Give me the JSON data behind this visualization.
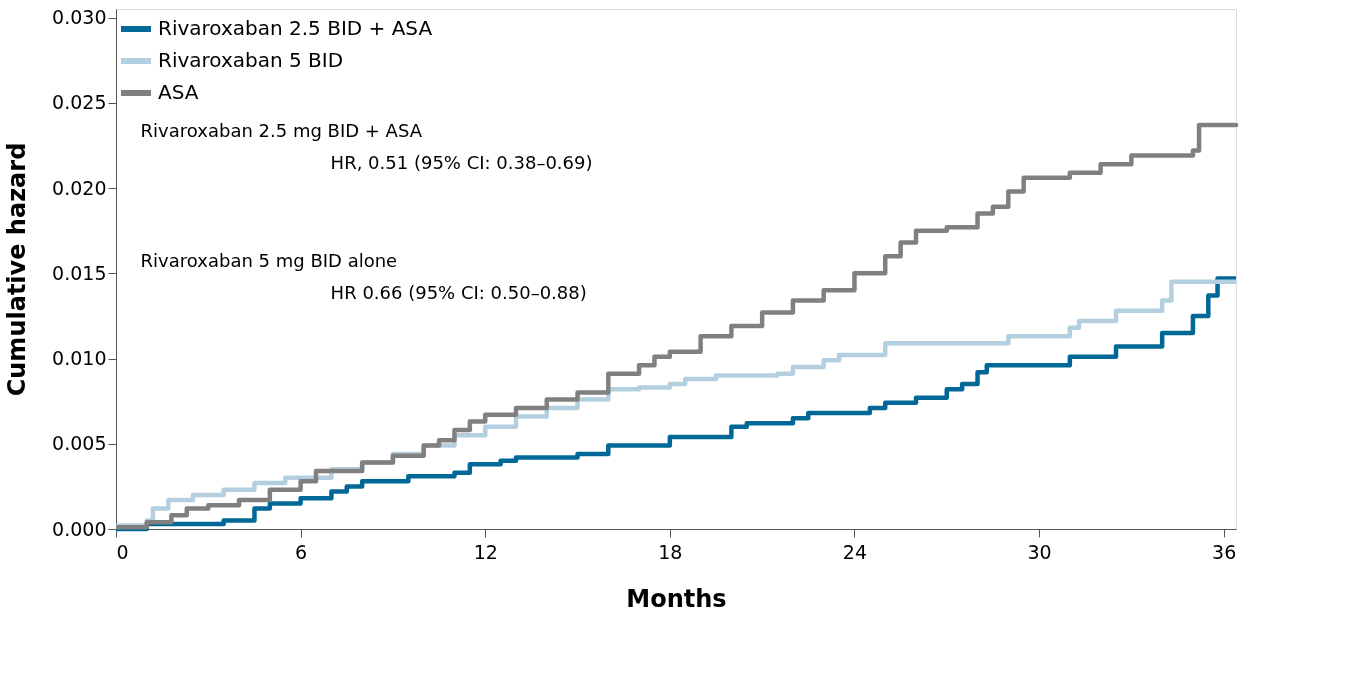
{
  "chart_data": {
    "type": "step",
    "xlabel": "Months",
    "ylabel": "Cumulative hazard",
    "xlim": [
      0,
      36.4
    ],
    "xticks": [
      0,
      6,
      12,
      18,
      24,
      30,
      36
    ],
    "ylim": [
      0,
      0.0305
    ],
    "yticks": [
      {
        "value": 0,
        "label": "0.000"
      },
      {
        "value": 0.005,
        "label": "0.005"
      },
      {
        "value": 0.01,
        "label": "0.010"
      },
      {
        "value": 0.015,
        "label": "0.015"
      },
      {
        "value": 0.02,
        "label": "0.020"
      },
      {
        "value": 0.025,
        "label": "0.025"
      },
      {
        "value": 0.03,
        "label": "0.030"
      }
    ],
    "grid": false,
    "legend": "top left",
    "line_style": "solid",
    "marker": "none",
    "annotations": [
      "Rivaroxaban 2.5 mg BID + ASA\nHR, 0.51 (95% CI: 0.38–0.69)",
      "Rivaroxaban 5 mg BID alone\nHR 0.66 (95% CI: 0.50–0.88)"
    ],
    "series": [
      {
        "name": "Rivaroxaban 2.5 BID + ASA",
        "color": "#006896",
        "x": [
          0,
          1,
          3.5,
          4.5,
          5,
          6,
          7,
          7.5,
          8,
          9.5,
          11,
          11.5,
          12.5,
          13,
          15,
          16,
          18,
          20,
          20.5,
          22,
          22.5,
          24.5,
          25,
          26,
          27,
          27.5,
          28,
          28.3,
          31,
          32.5,
          34,
          35,
          35.5,
          35.8,
          36.4
        ],
        "values": [
          0,
          0.0003,
          0.0005,
          0.0012,
          0.0015,
          0.0018,
          0.0022,
          0.0025,
          0.0028,
          0.0031,
          0.0033,
          0.0038,
          0.004,
          0.0042,
          0.0044,
          0.0049,
          0.0054,
          0.006,
          0.0062,
          0.0065,
          0.0068,
          0.0071,
          0.0074,
          0.0077,
          0.0082,
          0.0085,
          0.0092,
          0.0096,
          0.0101,
          0.0107,
          0.0115,
          0.0125,
          0.0137,
          0.0147,
          0.0147
        ]
      },
      {
        "name": "Rivaroxaban 5 BID",
        "color": "#b4cfe0",
        "x": [
          0,
          1,
          1.2,
          1.7,
          2.5,
          3.5,
          4.5,
          5.5,
          7,
          8,
          9,
          10,
          11,
          12,
          13,
          14,
          15,
          16,
          17,
          18,
          18.5,
          19.5,
          21.5,
          22,
          23,
          23.5,
          25,
          29,
          31,
          31.3,
          32.5,
          34,
          34.3,
          36.4
        ],
        "values": [
          0.0002,
          0.0005,
          0.0012,
          0.0017,
          0.002,
          0.0023,
          0.0027,
          0.003,
          0.0035,
          0.0039,
          0.0044,
          0.0049,
          0.0055,
          0.006,
          0.0066,
          0.0071,
          0.0076,
          0.0082,
          0.0083,
          0.0085,
          0.0088,
          0.009,
          0.0091,
          0.0095,
          0.0099,
          0.0102,
          0.0109,
          0.0113,
          0.0118,
          0.0122,
          0.0128,
          0.0134,
          0.0145,
          0.0145
        ]
      },
      {
        "name": "ASA",
        "color": "#808080",
        "x": [
          0,
          1,
          1.8,
          2.3,
          3,
          4,
          5,
          6,
          6.5,
          8,
          9,
          10,
          10.5,
          11,
          11.5,
          12,
          13,
          14,
          15,
          16,
          17,
          17.5,
          18,
          19,
          20,
          21,
          22,
          23,
          24,
          25,
          25.5,
          26,
          27,
          28,
          28.5,
          29,
          29.5,
          31,
          32,
          33,
          35,
          35.2,
          36.4
        ],
        "values": [
          0.0001,
          0.0004,
          0.0008,
          0.0012,
          0.0014,
          0.0017,
          0.0023,
          0.0028,
          0.0034,
          0.0039,
          0.0043,
          0.0049,
          0.0052,
          0.0058,
          0.0063,
          0.0067,
          0.0071,
          0.0076,
          0.008,
          0.0091,
          0.0096,
          0.0101,
          0.0104,
          0.0113,
          0.0119,
          0.0127,
          0.0134,
          0.014,
          0.015,
          0.016,
          0.0168,
          0.0175,
          0.0177,
          0.0185,
          0.0189,
          0.0198,
          0.0206,
          0.0209,
          0.0214,
          0.0219,
          0.0222,
          0.0237,
          0.0238
        ]
      }
    ]
  }
}
